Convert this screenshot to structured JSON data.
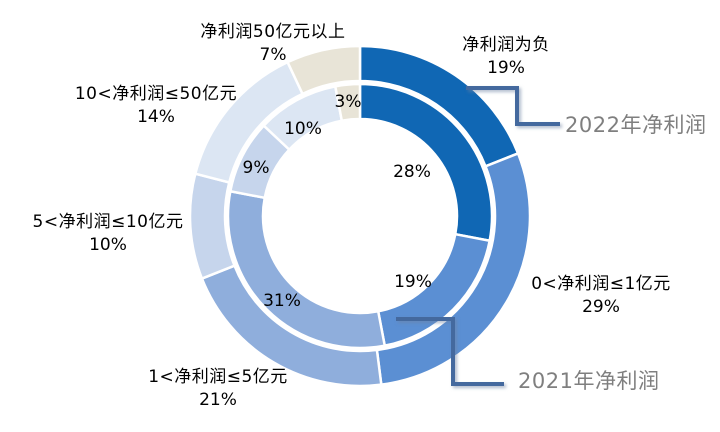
{
  "chart_data": {
    "type": "pie",
    "subtype": "double-ring-donut",
    "title": "",
    "unit": "%",
    "start_angle_deg": 0,
    "direction": "clockwise",
    "legend": "none",
    "background": "#FFFFFF",
    "categories": [
      "净利润为负",
      "0<净利润≤1亿元",
      "1<净利润≤5亿元",
      "5<净利润≤10亿元",
      "10<净利润≤50亿元",
      "净利润50亿元以上"
    ],
    "colors": [
      "#1067B4",
      "#5B8FD3",
      "#8FAEDC",
      "#C6D5EC",
      "#DCE6F3",
      "#E8E4D7"
    ],
    "series": [
      {
        "name": "2022年净利润",
        "ring": "outer",
        "values": [
          19,
          29,
          21,
          10,
          14,
          7
        ]
      },
      {
        "name": "2021年净利润",
        "ring": "inner",
        "values": [
          28,
          19,
          31,
          9,
          10,
          3
        ]
      }
    ],
    "outer_labels": [
      {
        "title": "净利润为负",
        "value": "19%"
      },
      {
        "title": "0<净利润≤1亿元",
        "value": "29%"
      },
      {
        "title": "1<净利润≤5亿元",
        "value": "21%"
      },
      {
        "title": "5<净利润≤10亿元",
        "value": "10%"
      },
      {
        "title": "10<净利润≤50亿元",
        "value": "14%"
      },
      {
        "title": "净利润50亿元以上",
        "value": "7%"
      }
    ],
    "inner_labels": [
      "28%",
      "19%",
      "31%",
      "9%",
      "10%",
      "3%"
    ],
    "series_callouts": [
      {
        "text": "2022年净利润"
      },
      {
        "text": "2021年净利润"
      }
    ],
    "callout_text_color": "#7F7F7F",
    "connector_color": "#44699E",
    "slice_border_color": "#FFFFFF"
  }
}
